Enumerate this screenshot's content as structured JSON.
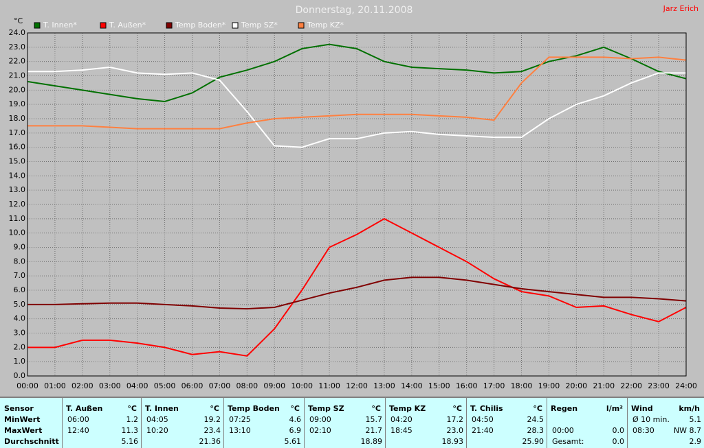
{
  "chart_data": {
    "type": "line",
    "title": "Donnerstag, 20.11.2008",
    "author": "Jarz Erich",
    "y_label": "°C",
    "x": [
      0,
      1,
      2,
      3,
      4,
      5,
      6,
      7,
      8,
      9,
      10,
      11,
      12,
      13,
      14,
      15,
      16,
      17,
      18,
      19,
      20,
      21,
      22,
      23,
      24
    ],
    "xlim": [
      0,
      24
    ],
    "ylim": [
      0,
      24
    ],
    "grid": true,
    "xticks": [
      {
        "value": 0,
        "label": "00:00"
      },
      {
        "value": 1,
        "label": "01:00"
      },
      {
        "value": 2,
        "label": "02:00"
      },
      {
        "value": 3,
        "label": "03:00"
      },
      {
        "value": 4,
        "label": "04:00"
      },
      {
        "value": 5,
        "label": "05:00"
      },
      {
        "value": 6,
        "label": "06:00"
      },
      {
        "value": 7,
        "label": "07:00"
      },
      {
        "value": 8,
        "label": "08:00"
      },
      {
        "value": 9,
        "label": "09:00"
      },
      {
        "value": 10,
        "label": "10:00"
      },
      {
        "value": 11,
        "label": "11:00"
      },
      {
        "value": 12,
        "label": "12:00"
      },
      {
        "value": 13,
        "label": "13:00"
      },
      {
        "value": 14,
        "label": "14:00"
      },
      {
        "value": 15,
        "label": "15:00"
      },
      {
        "value": 16,
        "label": "16:00"
      },
      {
        "value": 17,
        "label": "17:00"
      },
      {
        "value": 18,
        "label": "18:00"
      },
      {
        "value": 19,
        "label": "19:00"
      },
      {
        "value": 20,
        "label": "20:00"
      },
      {
        "value": 21,
        "label": "21:00"
      },
      {
        "value": 22,
        "label": "22:00"
      },
      {
        "value": 23,
        "label": "23:00"
      },
      {
        "value": 24,
        "label": "24:00"
      }
    ],
    "yticks": [
      {
        "value": 0,
        "label": "0.0"
      },
      {
        "value": 1,
        "label": "1.0"
      },
      {
        "value": 2,
        "label": "2.0"
      },
      {
        "value": 3,
        "label": "3.0"
      },
      {
        "value": 4,
        "label": "4.0"
      },
      {
        "value": 5,
        "label": "5.0"
      },
      {
        "value": 6,
        "label": "6.0"
      },
      {
        "value": 7,
        "label": "7.0"
      },
      {
        "value": 8,
        "label": "8.0"
      },
      {
        "value": 9,
        "label": "9.0"
      },
      {
        "value": 10,
        "label": "10.0"
      },
      {
        "value": 11,
        "label": "11.0"
      },
      {
        "value": 12,
        "label": "12.0"
      },
      {
        "value": 13,
        "label": "13.0"
      },
      {
        "value": 14,
        "label": "14.0"
      },
      {
        "value": 15,
        "label": "15.0"
      },
      {
        "value": 16,
        "label": "16.0"
      },
      {
        "value": 17,
        "label": "17.0"
      },
      {
        "value": 18,
        "label": "18.0"
      },
      {
        "value": 19,
        "label": "19.0"
      },
      {
        "value": 20,
        "label": "20.0"
      },
      {
        "value": 21,
        "label": "21.0"
      },
      {
        "value": 22,
        "label": "22.0"
      },
      {
        "value": 23,
        "label": "23.0"
      },
      {
        "value": 24,
        "label": "24.0"
      }
    ],
    "series": [
      {
        "name": "T. Innen*",
        "color": "#007000",
        "values": [
          20.6,
          20.3,
          20.0,
          19.7,
          19.4,
          19.2,
          19.8,
          20.9,
          21.4,
          22.0,
          22.9,
          23.2,
          22.9,
          22.0,
          21.6,
          21.5,
          21.4,
          21.2,
          21.3,
          22.0,
          22.4,
          23.0,
          22.2,
          21.3,
          20.8
        ]
      },
      {
        "name": "T. Außen*",
        "color": "#ff0000",
        "values": [
          2.0,
          2.0,
          2.5,
          2.5,
          2.3,
          2.0,
          1.5,
          1.7,
          1.4,
          3.3,
          6.0,
          9.0,
          9.9,
          11.0,
          10.0,
          9.0,
          8.0,
          6.8,
          5.9,
          5.6,
          4.8,
          4.9,
          4.3,
          3.8,
          4.8
        ]
      },
      {
        "name": "Temp Boden*",
        "color": "#800000",
        "values": [
          5.0,
          5.0,
          5.05,
          5.1,
          5.1,
          5.0,
          4.9,
          4.75,
          4.7,
          4.8,
          5.3,
          5.8,
          6.2,
          6.7,
          6.9,
          6.9,
          6.7,
          6.4,
          6.1,
          5.9,
          5.7,
          5.5,
          5.5,
          5.4,
          5.25
        ]
      },
      {
        "name": "Temp SZ*",
        "color": "#ffffff",
        "values": [
          21.3,
          21.3,
          21.4,
          21.6,
          21.2,
          21.1,
          21.2,
          20.7,
          18.5,
          16.1,
          16.0,
          16.6,
          16.6,
          17.0,
          17.1,
          16.9,
          16.8,
          16.7,
          16.7,
          18.0,
          19.0,
          19.6,
          20.5,
          21.2,
          21.2
        ]
      },
      {
        "name": "Temp KZ*",
        "color": "#ff8040",
        "values": [
          17.5,
          17.5,
          17.5,
          17.4,
          17.3,
          17.3,
          17.3,
          17.3,
          17.7,
          18.0,
          18.1,
          18.2,
          18.3,
          18.3,
          18.3,
          18.2,
          18.1,
          17.9,
          20.5,
          22.3,
          22.3,
          22.3,
          22.2,
          22.3,
          22.1
        ]
      }
    ]
  },
  "table": {
    "row_labels": [
      "Sensor",
      "MinWert",
      "MaxWert",
      "Durchschnitt"
    ],
    "columns": [
      {
        "name": "T. Außen",
        "unit": "°C",
        "rows": [
          {
            "time": "06:00",
            "value": "1.2"
          },
          {
            "time": "12:40",
            "value": "11.3"
          },
          {
            "value": "5.16"
          }
        ]
      },
      {
        "name": "T. Innen",
        "unit": "°C",
        "rows": [
          {
            "time": "04:05",
            "value": "19.2"
          },
          {
            "time": "10:20",
            "value": "23.4"
          },
          {
            "value": "21.36"
          }
        ]
      },
      {
        "name": "Temp Boden",
        "unit": "°C",
        "rows": [
          {
            "time": "07:25",
            "value": "4.6"
          },
          {
            "time": "13:10",
            "value": "6.9"
          },
          {
            "value": "5.61"
          }
        ]
      },
      {
        "name": "Temp SZ",
        "unit": "°C",
        "rows": [
          {
            "time": "09:00",
            "value": "15.7"
          },
          {
            "time": "02:10",
            "value": "21.7"
          },
          {
            "value": "18.89"
          }
        ]
      },
      {
        "name": "Temp KZ",
        "unit": "°C",
        "rows": [
          {
            "time": "04:20",
            "value": "17.2"
          },
          {
            "time": "18:45",
            "value": "23.0"
          },
          {
            "value": "18.93"
          }
        ]
      },
      {
        "name": "T. Chilis",
        "unit": "°C",
        "rows": [
          {
            "time": "04:50",
            "value": "24.5"
          },
          {
            "time": "21:40",
            "value": "28.3"
          },
          {
            "value": "25.90"
          }
        ]
      },
      {
        "name": "Regen",
        "unit": "l/m²",
        "rows": [
          null,
          {
            "time": "00:00",
            "value": "0.0"
          },
          {
            "time": "Gesamt:",
            "value": "0.0"
          }
        ]
      },
      {
        "name": "Wind",
        "unit": "km/h",
        "rows": [
          {
            "time": "Ø 10 min.",
            "value": "5.1"
          },
          {
            "time": "08:30",
            "value": "NW 8.7"
          },
          {
            "value": "2.9"
          }
        ]
      }
    ]
  }
}
